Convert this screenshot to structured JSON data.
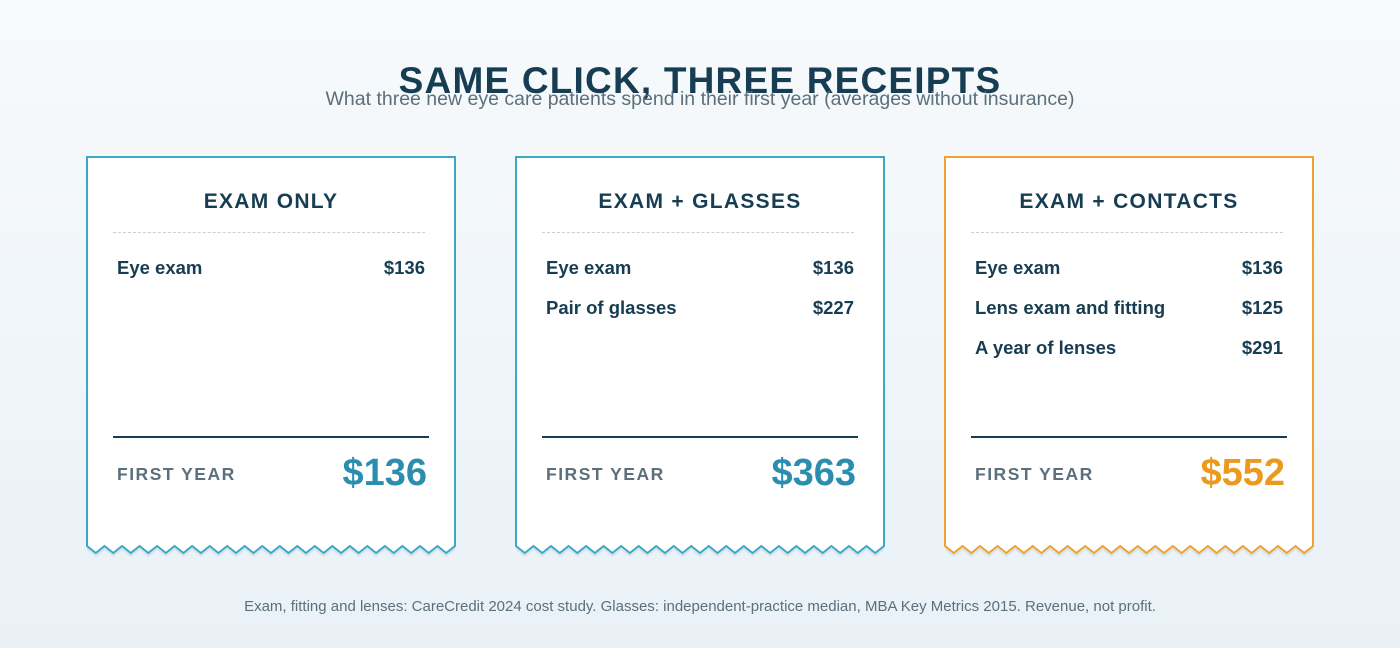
{
  "title": "SAME CLICK, THREE RECEIPTS",
  "subtitle": "What three new eye care patients spend in their first year (averages without insurance)",
  "colors": {
    "navy": "#173d52",
    "teal": "#3aa9c6",
    "teal_text": "#2b8eae",
    "orange": "#f0a230",
    "orange_text": "#ec9a1e",
    "muted": "#5c6f7b"
  },
  "receipts": [
    {
      "heading": "EXAM ONLY",
      "items": [
        {
          "label": "Eye exam",
          "amount": "$136"
        }
      ],
      "total_label": "FIRST YEAR",
      "total_value": "$136",
      "accent": "#3aa9c6",
      "total_color": "#2b8eae"
    },
    {
      "heading": "EXAM + GLASSES",
      "items": [
        {
          "label": "Eye exam",
          "amount": "$136"
        },
        {
          "label": "Pair of glasses",
          "amount": "$227"
        }
      ],
      "total_label": "FIRST YEAR",
      "total_value": "$363",
      "accent": "#3aa9c6",
      "total_color": "#2b8eae"
    },
    {
      "heading": "EXAM + CONTACTS",
      "items": [
        {
          "label": "Eye exam",
          "amount": "$136"
        },
        {
          "label": "Lens exam and fitting",
          "amount": "$125"
        },
        {
          "label": "A year of lenses",
          "amount": "$291"
        }
      ],
      "total_label": "FIRST YEAR",
      "total_value": "$552",
      "accent": "#f0a230",
      "total_color": "#ec9a1e"
    }
  ],
  "footnote": "Exam, fitting and lenses: CareCredit 2024 cost study. Glasses: independent-practice median, MBA Key Metrics 2015. Revenue, not profit."
}
